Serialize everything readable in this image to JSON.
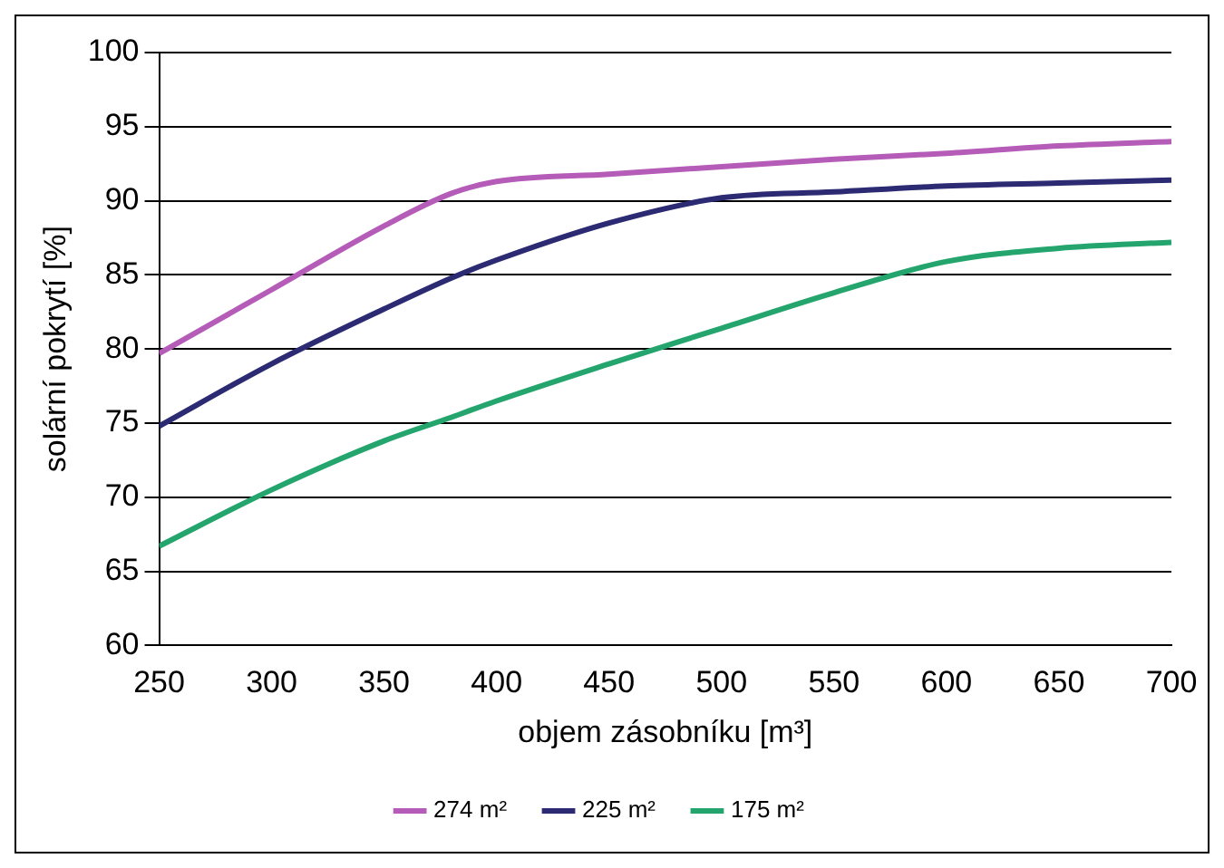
{
  "chart_data": {
    "type": "line",
    "xlabel": "objem zásobníku [m³]",
    "ylabel": "solární pokrytí [%]",
    "x": [
      250,
      300,
      350,
      380,
      400,
      450,
      500,
      550,
      600,
      650,
      700
    ],
    "series": [
      {
        "name": "274 m²",
        "color": "#b55bb8",
        "values": [
          79.7,
          84,
          88.3,
          90.5,
          91.3,
          91.8,
          92.3,
          92.8,
          93.2,
          93.7,
          94
        ]
      },
      {
        "name": "225 m²",
        "color": "#2b2a72",
        "values": [
          74.8,
          79,
          82.7,
          84.8,
          86,
          88.5,
          90.2,
          90.6,
          91,
          91.2,
          91.4
        ]
      },
      {
        "name": "175 m²",
        "color": "#25a56e",
        "values": [
          66.7,
          70.5,
          73.8,
          75.4,
          76.5,
          79,
          81.4,
          83.8,
          85.9,
          86.8,
          87.2
        ]
      }
    ],
    "xlim": [
      250,
      700
    ],
    "xticks": [
      250,
      300,
      350,
      400,
      450,
      500,
      550,
      600,
      650,
      700
    ],
    "ylim": [
      60,
      100
    ],
    "yticks": [
      60,
      65,
      70,
      75,
      80,
      85,
      90,
      95,
      100
    ],
    "grid": "y",
    "legend": "bottom",
    "marker": "none",
    "line_style": "solid"
  }
}
